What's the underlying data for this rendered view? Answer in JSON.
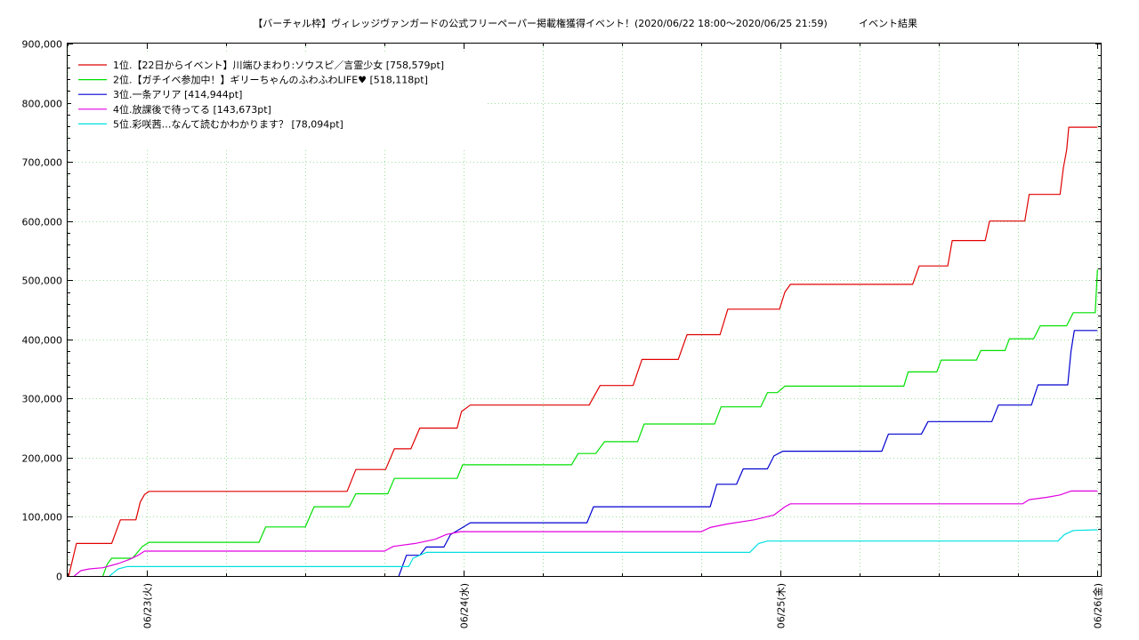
{
  "chart_data": {
    "type": "line",
    "title": "【バーチャル枠】ヴィレッジヴァンガードの公式フリーペーパー掲載権獲得イベント！(2020/06/22 18:00～2020/06/25 21:59)",
    "subtitle": "イベント結果",
    "x_axis": {
      "range": [
        "2020/06/22 18:00",
        "2020/06/26 00:15"
      ],
      "major_ticks": [
        {
          "at": "2020/06/23 00:00",
          "label": "06/23(火)"
        },
        {
          "at": "2020/06/24 00:00",
          "label": "06/24(水)"
        },
        {
          "at": "2020/06/25 00:00",
          "label": "06/25(木)"
        },
        {
          "at": "2020/06/26 00:00",
          "label": "06/26(金)"
        }
      ],
      "minor_tick_interval_hours": 6
    },
    "y_axis": {
      "range": [
        0,
        900000
      ],
      "ticks": [
        0,
        100000,
        200000,
        300000,
        400000,
        500000,
        600000,
        700000,
        800000,
        900000
      ],
      "tick_labels": [
        "0",
        "100,000",
        "200,000",
        "300,000",
        "400,000",
        "500,000",
        "600,000",
        "700,000",
        "800,000",
        "900,000"
      ]
    },
    "grid": true,
    "legend": "top-left",
    "series": [
      {
        "name": "1位.【22日からイベント】川端ひまわり:ソウスピ／言霊少女 [758,579pt]",
        "color": "#e00000",
        "points": [
          [
            "2020/06/22 18:05",
            0
          ],
          [
            "2020/06/22 18:40",
            55000
          ],
          [
            "2020/06/22 21:20",
            55000
          ],
          [
            "2020/06/22 22:00",
            95000
          ],
          [
            "2020/06/22 23:10",
            95000
          ],
          [
            "2020/06/22 23:30",
            125000
          ],
          [
            "2020/06/22 23:50",
            138000
          ],
          [
            "2020/06/23 00:10",
            143000
          ],
          [
            "2020/06/23 15:10",
            143000
          ],
          [
            "2020/06/23 15:50",
            180000
          ],
          [
            "2020/06/23 18:05",
            180000
          ],
          [
            "2020/06/23 18:45",
            215000
          ],
          [
            "2020/06/23 20:00",
            215000
          ],
          [
            "2020/06/23 20:40",
            250000
          ],
          [
            "2020/06/23 23:30",
            250000
          ],
          [
            "2020/06/23 23:50",
            278000
          ],
          [
            "2020/06/24 00:30",
            289000
          ],
          [
            "2020/06/24 09:30",
            289000
          ],
          [
            "2020/06/24 10:20",
            322000
          ],
          [
            "2020/06/24 12:50",
            322000
          ],
          [
            "2020/06/24 13:30",
            366000
          ],
          [
            "2020/06/24 16:15",
            366000
          ],
          [
            "2020/06/24 16:55",
            408000
          ],
          [
            "2020/06/24 19:25",
            408000
          ],
          [
            "2020/06/24 20:00",
            451000
          ],
          [
            "2020/06/24 23:55",
            451000
          ],
          [
            "2020/06/25 00:20",
            480000
          ],
          [
            "2020/06/25 00:45",
            493000
          ],
          [
            "2020/06/25 10:00",
            493000
          ],
          [
            "2020/06/25 10:30",
            524000
          ],
          [
            "2020/06/25 12:40",
            524000
          ],
          [
            "2020/06/25 13:00",
            567000
          ],
          [
            "2020/06/25 15:30",
            567000
          ],
          [
            "2020/06/25 15:50",
            600000
          ],
          [
            "2020/06/25 18:30",
            600000
          ],
          [
            "2020/06/25 18:50",
            645000
          ],
          [
            "2020/06/25 21:10",
            645000
          ],
          [
            "2020/06/25 21:25",
            690000
          ],
          [
            "2020/06/25 21:40",
            720000
          ],
          [
            "2020/06/25 21:50",
            758579
          ],
          [
            "2020/06/26 00:00",
            758579
          ]
        ]
      },
      {
        "name": "2位.【ガチイベ参加中！】ギリーちゃんのふわふわLIFE♥ [518,118pt]",
        "color": "#00e000",
        "points": [
          [
            "2020/06/22 20:40",
            0
          ],
          [
            "2020/06/22 21:00",
            20000
          ],
          [
            "2020/06/22 21:20",
            30000
          ],
          [
            "2020/06/22 22:55",
            30000
          ],
          [
            "2020/06/22 23:40",
            50000
          ],
          [
            "2020/06/23 00:10",
            57000
          ],
          [
            "2020/06/23 08:30",
            57000
          ],
          [
            "2020/06/23 09:00",
            83000
          ],
          [
            "2020/06/23 12:00",
            83000
          ],
          [
            "2020/06/23 12:40",
            117000
          ],
          [
            "2020/06/23 15:20",
            117000
          ],
          [
            "2020/06/23 15:50",
            139000
          ],
          [
            "2020/06/23 18:15",
            139000
          ],
          [
            "2020/06/23 18:45",
            165000
          ],
          [
            "2020/06/23 23:30",
            165000
          ],
          [
            "2020/06/23 23:55",
            188000
          ],
          [
            "2020/06/24 08:10",
            188000
          ],
          [
            "2020/06/24 08:40",
            207000
          ],
          [
            "2020/06/24 10:00",
            207000
          ],
          [
            "2020/06/24 10:40",
            227000
          ],
          [
            "2020/06/24 13:10",
            227000
          ],
          [
            "2020/06/24 13:40",
            257000
          ],
          [
            "2020/06/24 19:00",
            257000
          ],
          [
            "2020/06/24 19:30",
            286000
          ],
          [
            "2020/06/24 22:30",
            286000
          ],
          [
            "2020/06/24 23:00",
            310000
          ],
          [
            "2020/06/24 23:45",
            310000
          ],
          [
            "2020/06/25 00:20",
            321000
          ],
          [
            "2020/06/25 09:20",
            321000
          ],
          [
            "2020/06/25 09:40",
            345000
          ],
          [
            "2020/06/25 11:50",
            345000
          ],
          [
            "2020/06/25 12:10",
            365000
          ],
          [
            "2020/06/25 14:50",
            365000
          ],
          [
            "2020/06/25 15:10",
            381000
          ],
          [
            "2020/06/25 17:00",
            381000
          ],
          [
            "2020/06/25 17:20",
            401000
          ],
          [
            "2020/06/25 19:10",
            401000
          ],
          [
            "2020/06/25 19:40",
            423000
          ],
          [
            "2020/06/25 21:40",
            423000
          ],
          [
            "2020/06/25 22:10",
            445000
          ],
          [
            "2020/06/25 23:50",
            445000
          ],
          [
            "2020/06/26 00:00",
            518118
          ]
        ]
      },
      {
        "name": "3位.一条アリア [414,944pt]",
        "color": "#0000d0",
        "points": [
          [
            "2020/06/23 19:05",
            0
          ],
          [
            "2020/06/23 19:40",
            35000
          ],
          [
            "2020/06/23 20:40",
            35000
          ],
          [
            "2020/06/23 21:10",
            49000
          ],
          [
            "2020/06/23 22:30",
            49000
          ],
          [
            "2020/06/23 23:00",
            70000
          ],
          [
            "2020/06/23 23:55",
            82000
          ],
          [
            "2020/06/24 00:30",
            90000
          ],
          [
            "2020/06/24 09:20",
            90000
          ],
          [
            "2020/06/24 09:50",
            117000
          ],
          [
            "2020/06/24 18:40",
            117000
          ],
          [
            "2020/06/24 19:10",
            155000
          ],
          [
            "2020/06/24 20:40",
            155000
          ],
          [
            "2020/06/24 21:10",
            181000
          ],
          [
            "2020/06/24 23:00",
            181000
          ],
          [
            "2020/06/24 23:30",
            203000
          ],
          [
            "2020/06/25 00:10",
            211000
          ],
          [
            "2020/06/25 07:40",
            211000
          ],
          [
            "2020/06/25 08:10",
            240000
          ],
          [
            "2020/06/25 10:40",
            240000
          ],
          [
            "2020/06/25 11:10",
            261000
          ],
          [
            "2020/06/25 16:00",
            261000
          ],
          [
            "2020/06/25 16:30",
            289000
          ],
          [
            "2020/06/25 19:00",
            289000
          ],
          [
            "2020/06/25 19:30",
            323000
          ],
          [
            "2020/06/25 21:45",
            323000
          ],
          [
            "2020/06/25 22:00",
            380000
          ],
          [
            "2020/06/25 22:15",
            414944
          ],
          [
            "2020/06/26 00:00",
            414944
          ]
        ]
      },
      {
        "name": "4位.放課後で待ってる [143,673pt]",
        "color": "#e000e0",
        "points": [
          [
            "2020/06/22 18:30",
            0
          ],
          [
            "2020/06/22 19:00",
            9000
          ],
          [
            "2020/06/22 19:40",
            12000
          ],
          [
            "2020/06/22 20:40",
            14000
          ],
          [
            "2020/06/22 21:50",
            21000
          ],
          [
            "2020/06/22 22:40",
            28000
          ],
          [
            "2020/06/22 23:20",
            35000
          ],
          [
            "2020/06/22 23:50",
            42000
          ],
          [
            "2020/06/23 18:00",
            42000
          ],
          [
            "2020/06/23 18:40",
            50000
          ],
          [
            "2020/06/23 20:20",
            55000
          ],
          [
            "2020/06/23 21:50",
            62000
          ],
          [
            "2020/06/23 22:40",
            70000
          ],
          [
            "2020/06/23 23:45",
            75000
          ],
          [
            "2020/06/24 18:00",
            75000
          ],
          [
            "2020/06/24 18:40",
            82000
          ],
          [
            "2020/06/24 20:00",
            88000
          ],
          [
            "2020/06/24 22:00",
            95000
          ],
          [
            "2020/06/24 23:30",
            103000
          ],
          [
            "2020/06/25 00:20",
            117000
          ],
          [
            "2020/06/25 00:45",
            122000
          ],
          [
            "2020/06/25 18:20",
            122000
          ],
          [
            "2020/06/25 18:50",
            129000
          ],
          [
            "2020/06/25 20:10",
            133000
          ],
          [
            "2020/06/25 21:10",
            137000
          ],
          [
            "2020/06/25 22:00",
            143673
          ],
          [
            "2020/06/26 00:00",
            143673
          ]
        ]
      },
      {
        "name": "5位.彩咲茜…なんて読むかわかります？ [78,094pt]",
        "color": "#00e0e0",
        "points": [
          [
            "2020/06/22 21:10",
            0
          ],
          [
            "2020/06/22 21:50",
            12000
          ],
          [
            "2020/06/22 22:30",
            16000
          ],
          [
            "2020/06/23 19:50",
            16000
          ],
          [
            "2020/06/23 20:10",
            30000
          ],
          [
            "2020/06/23 21:10",
            40000
          ],
          [
            "2020/06/24 21:40",
            40000
          ],
          [
            "2020/06/24 22:20",
            55000
          ],
          [
            "2020/06/24 23:00",
            59000
          ],
          [
            "2020/06/25 21:00",
            59000
          ],
          [
            "2020/06/25 21:30",
            70000
          ],
          [
            "2020/06/25 22:10",
            77000
          ],
          [
            "2020/06/26 00:00",
            78094
          ]
        ]
      }
    ]
  }
}
